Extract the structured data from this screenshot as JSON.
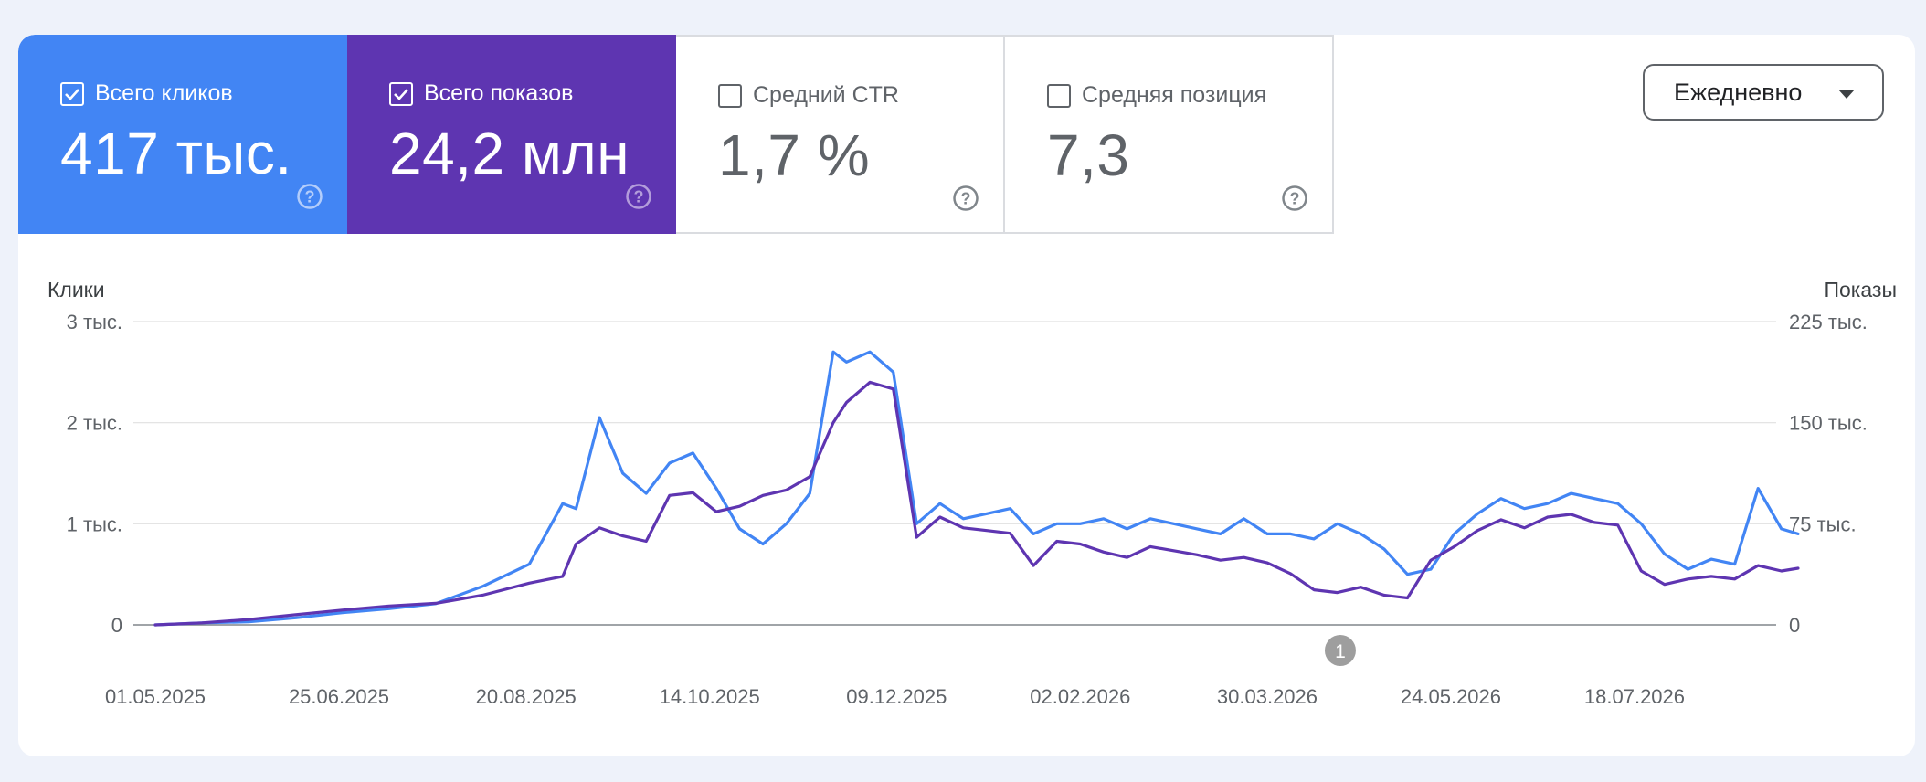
{
  "metrics": [
    {
      "label": "Всего кликов",
      "value": "417 тыс.",
      "checked": true,
      "color": "#4285f4"
    },
    {
      "label": "Всего показов",
      "value": "24,2 млн",
      "checked": true,
      "color": "#5e35b1"
    },
    {
      "label": "Средний CTR",
      "value": "1,7 %",
      "checked": false
    },
    {
      "label": "Средняя позиция",
      "value": "7,3",
      "checked": false
    }
  ],
  "dropdown": {
    "selected": "Ежедневно",
    "icon": "caret-down-icon"
  },
  "chart": {
    "left_axis_title": "Клики",
    "right_axis_title": "Показы",
    "annotation_label": "1"
  },
  "chart_data": {
    "type": "line",
    "title": "",
    "x_tick_labels": [
      "01.05.2025",
      "25.06.2025",
      "20.08.2025",
      "14.10.2025",
      "09.12.2025",
      "02.02.2026",
      "30.03.2026",
      "24.05.2026",
      "18.07.2026"
    ],
    "y_left": {
      "label": "Клики",
      "ticks": [
        "0",
        "1 тыс.",
        "2 тыс.",
        "3 тыс."
      ],
      "range": [
        0,
        3000
      ]
    },
    "y_right": {
      "label": "Показы",
      "ticks": [
        "0",
        "75 тыс.",
        "150 тыс.",
        "225 тыс."
      ],
      "range": [
        0,
        225000
      ]
    },
    "grid": true,
    "series": [
      {
        "name": "Всего кликов",
        "axis": "left",
        "color": "#4285f4",
        "x": [
          "01.05.2025",
          "15.05.2025",
          "29.05.2025",
          "12.06.2025",
          "26.06.2025",
          "10.07.2025",
          "24.07.2025",
          "07.08.2025",
          "21.08.2025",
          "31.08.2025",
          "04.09.2025",
          "11.09.2025",
          "18.09.2025",
          "25.09.2025",
          "02.10.2025",
          "09.10.2025",
          "16.10.2025",
          "23.10.2025",
          "30.10.2025",
          "06.11.2025",
          "13.11.2025",
          "20.11.2025",
          "24.11.2025",
          "01.12.2025",
          "08.12.2025",
          "15.12.2025",
          "22.12.2025",
          "29.12.2025",
          "05.01.2026",
          "12.01.2026",
          "19.01.2026",
          "26.01.2026",
          "02.02.2026",
          "09.02.2026",
          "16.02.2026",
          "23.02.2026",
          "02.03.2026",
          "09.03.2026",
          "16.03.2026",
          "23.03.2026",
          "30.03.2026",
          "06.04.2026",
          "13.04.2026",
          "20.04.2026",
          "27.04.2026",
          "04.05.2026",
          "11.05.2026",
          "18.05.2026",
          "25.05.2026",
          "01.06.2026",
          "08.06.2026",
          "15.06.2026",
          "22.06.2026",
          "29.06.2026",
          "06.07.2026",
          "13.07.2026",
          "20.07.2026",
          "27.07.2026",
          "03.08.2026",
          "10.08.2026",
          "17.08.2026",
          "24.08.2026",
          "31.08.2026",
          "05.09.2026"
        ],
        "y": [
          0,
          20,
          30,
          70,
          120,
          160,
          210,
          380,
          600,
          1200,
          1150,
          2050,
          1500,
          1300,
          1600,
          1700,
          1350,
          950,
          800,
          1000,
          1300,
          2700,
          2600,
          2700,
          2500,
          1000,
          1200,
          1050,
          1100,
          1150,
          900,
          1000,
          1000,
          1050,
          950,
          1050,
          1000,
          950,
          900,
          1050,
          900,
          900,
          850,
          1000,
          900,
          750,
          500,
          550,
          900,
          1100,
          1250,
          1150,
          1200,
          1300,
          1250,
          1200,
          1000,
          700,
          550,
          650,
          600,
          1350,
          950,
          900
        ]
      },
      {
        "name": "Всего показов",
        "axis": "right",
        "color": "#5e35b1",
        "x": [
          "01.05.2025",
          "15.05.2025",
          "29.05.2025",
          "12.06.2025",
          "26.06.2025",
          "10.07.2025",
          "24.07.2025",
          "07.08.2025",
          "21.08.2025",
          "31.08.2025",
          "04.09.2025",
          "11.09.2025",
          "18.09.2025",
          "25.09.2025",
          "02.10.2025",
          "09.10.2025",
          "16.10.2025",
          "23.10.2025",
          "30.10.2025",
          "06.11.2025",
          "13.11.2025",
          "20.11.2025",
          "24.11.2025",
          "01.12.2025",
          "08.12.2025",
          "15.12.2025",
          "22.12.2025",
          "29.12.2025",
          "05.01.2026",
          "12.01.2026",
          "19.01.2026",
          "26.01.2026",
          "02.02.2026",
          "09.02.2026",
          "16.02.2026",
          "23.02.2026",
          "02.03.2026",
          "09.03.2026",
          "16.03.2026",
          "23.03.2026",
          "30.03.2026",
          "06.04.2026",
          "13.04.2026",
          "20.04.2026",
          "27.04.2026",
          "04.05.2026",
          "11.05.2026",
          "18.05.2026",
          "25.05.2026",
          "01.06.2026",
          "08.06.2026",
          "15.06.2026",
          "22.06.2026",
          "29.06.2026",
          "06.07.2026",
          "13.07.2026",
          "20.07.2026",
          "27.07.2026",
          "03.08.2026",
          "10.08.2026",
          "17.08.2026",
          "24.08.2026",
          "31.08.2026",
          "05.09.2026"
        ],
        "y": [
          0,
          1500,
          4000,
          7500,
          11000,
          14000,
          16000,
          22000,
          31000,
          36000,
          60000,
          72000,
          66000,
          62000,
          96000,
          98000,
          84000,
          88000,
          96000,
          100000,
          110000,
          150000,
          165000,
          180000,
          175000,
          65000,
          80000,
          72000,
          70000,
          68000,
          44000,
          62000,
          60000,
          54000,
          50000,
          58000,
          55000,
          52000,
          48000,
          50000,
          46000,
          38000,
          26000,
          24000,
          28000,
          22000,
          20000,
          48000,
          58000,
          70000,
          78000,
          72000,
          80000,
          82000,
          76000,
          74000,
          40000,
          30000,
          34000,
          36000,
          34000,
          44000,
          40000,
          42000
        ]
      }
    ]
  }
}
